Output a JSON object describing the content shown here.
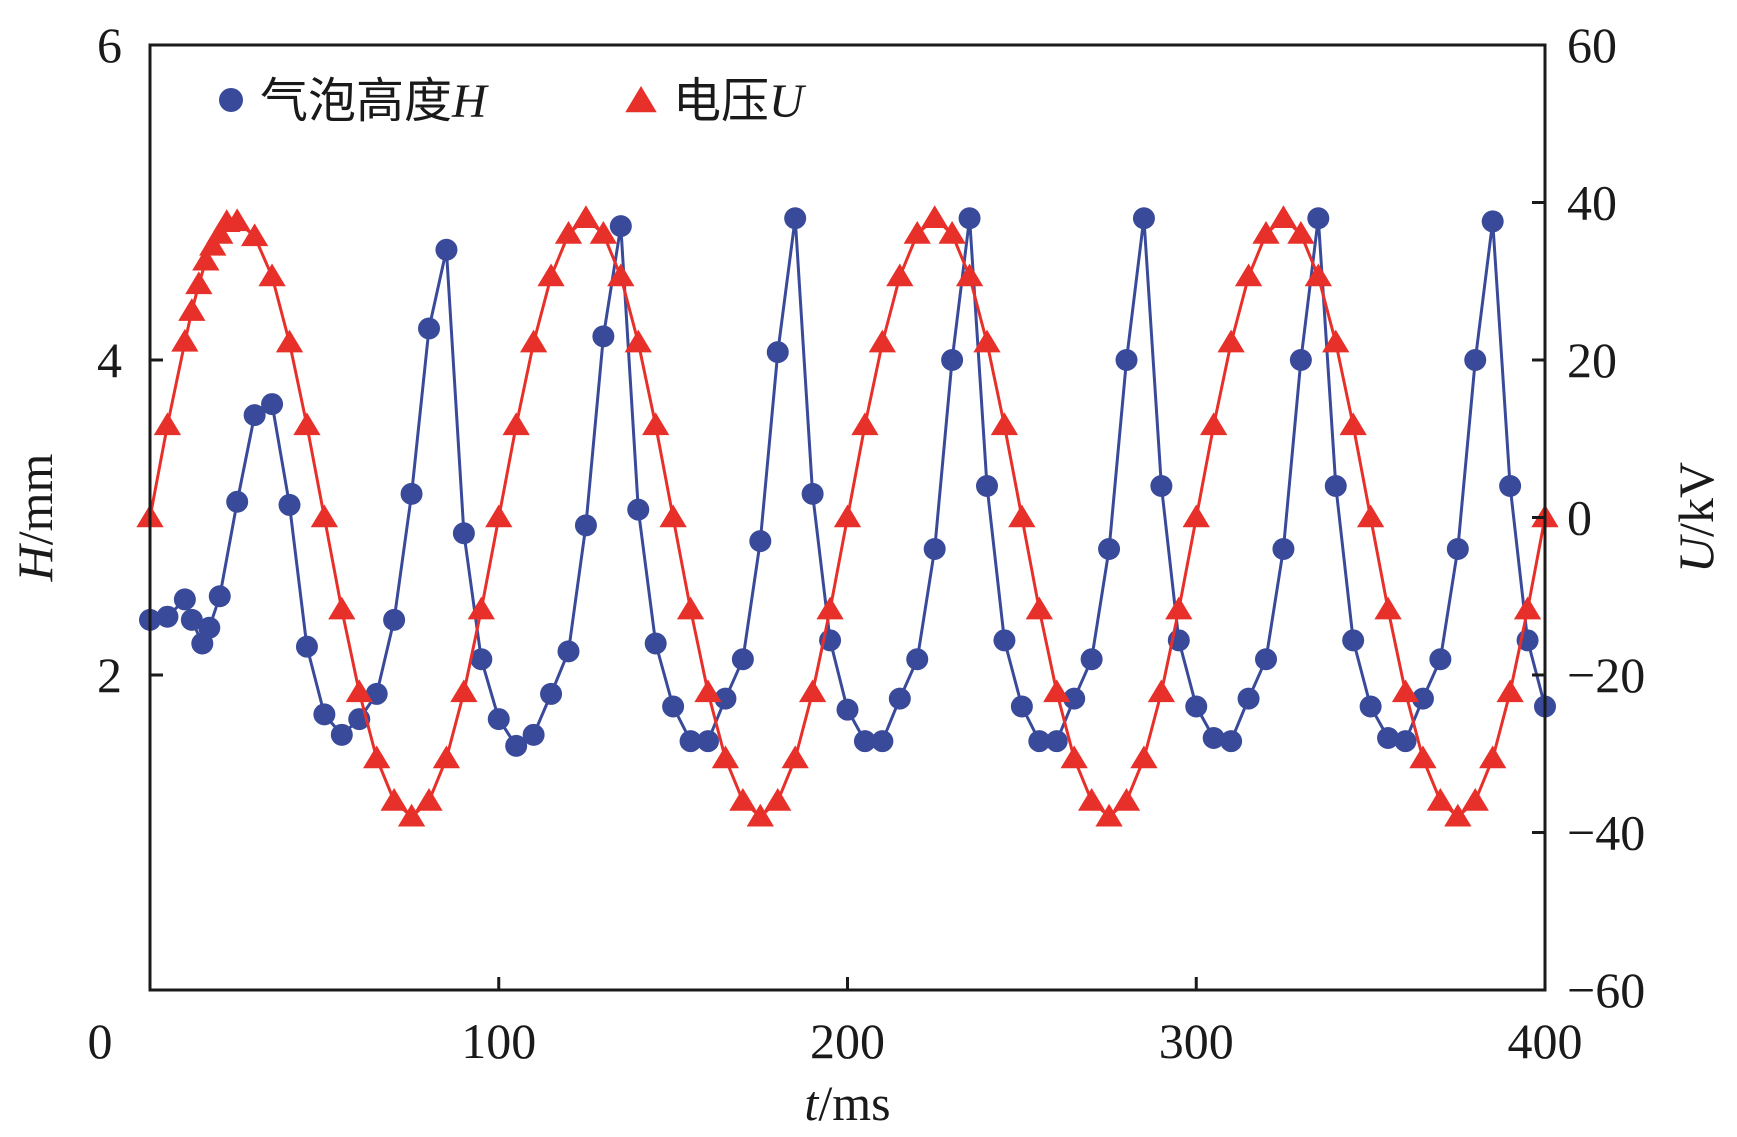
{
  "chart_data": {
    "type": "line",
    "title": "",
    "xlabel": {
      "symbol": "t",
      "unit": "/ms"
    },
    "ylabel_left": {
      "symbol": "H",
      "unit": "/mm"
    },
    "ylabel_right": {
      "symbol": "U",
      "unit": "/kV"
    },
    "xlim": [
      0,
      400
    ],
    "ylim_left": [
      0,
      6
    ],
    "ylim_right": [
      -60,
      60
    ],
    "x_ticks": [
      "0",
      "100",
      "200",
      "300",
      "400"
    ],
    "y_left_ticks": [
      "2",
      "4",
      "6"
    ],
    "y_right_ticks": [
      "60",
      "40",
      "20",
      "0",
      "−20",
      "−40",
      "−60"
    ],
    "legend_position": "top-left",
    "grid": false,
    "series": [
      {
        "name": "气泡高度",
        "symbol": "H",
        "axis": "left",
        "color": "#3a4a9a",
        "marker": "circle",
        "x": [
          0,
          5,
          10,
          12,
          15,
          17,
          20,
          25,
          30,
          35,
          40,
          45,
          50,
          55,
          60,
          65,
          70,
          75,
          80,
          85,
          90,
          95,
          100,
          105,
          110,
          115,
          120,
          125,
          130,
          135,
          140,
          145,
          150,
          155,
          160,
          165,
          170,
          175,
          180,
          185,
          190,
          195,
          200,
          205,
          210,
          215,
          220,
          225,
          230,
          235,
          240,
          245,
          250,
          255,
          260,
          265,
          270,
          275,
          280,
          285,
          290,
          295,
          300,
          305,
          310,
          315,
          320,
          325,
          330,
          335,
          340,
          345,
          350,
          355,
          360,
          365,
          370,
          375,
          380,
          385,
          390,
          395,
          400
        ],
        "values": [
          2.35,
          2.37,
          2.48,
          2.35,
          2.2,
          2.3,
          2.5,
          3.1,
          3.65,
          3.72,
          3.08,
          2.18,
          1.75,
          1.62,
          1.72,
          1.88,
          2.35,
          3.15,
          4.2,
          4.7,
          2.9,
          2.1,
          1.72,
          1.55,
          1.62,
          1.88,
          2.15,
          2.95,
          4.15,
          4.85,
          3.05,
          2.2,
          1.8,
          1.58,
          1.58,
          1.85,
          2.1,
          2.85,
          4.05,
          4.9,
          3.15,
          2.22,
          1.78,
          1.58,
          1.58,
          1.85,
          2.1,
          2.8,
          4.0,
          4.9,
          3.2,
          2.22,
          1.8,
          1.58,
          1.58,
          1.85,
          2.1,
          2.8,
          4.0,
          4.9,
          3.2,
          2.22,
          1.8,
          1.6,
          1.58,
          1.85,
          2.1,
          2.8,
          4.0,
          4.9,
          3.2,
          2.22,
          1.8,
          1.6,
          1.58,
          1.85,
          2.1,
          2.8,
          4.0,
          4.88,
          3.2,
          2.22,
          1.8
        ]
      },
      {
        "name": "电压",
        "symbol": "U",
        "axis": "right",
        "color": "#e8302a",
        "marker": "triangle",
        "x": [
          0,
          5,
          10,
          12,
          14,
          16,
          18,
          20,
          22,
          25,
          30,
          35,
          40,
          45,
          50,
          55,
          60,
          65,
          70,
          75,
          80,
          85,
          90,
          95,
          100,
          105,
          110,
          115,
          120,
          125,
          130,
          135,
          140,
          145,
          150,
          155,
          160,
          165,
          170,
          175,
          180,
          185,
          190,
          195,
          200,
          205,
          210,
          215,
          220,
          225,
          230,
          235,
          240,
          245,
          250,
          255,
          260,
          265,
          270,
          275,
          280,
          285,
          290,
          295,
          300,
          305,
          310,
          315,
          320,
          325,
          330,
          335,
          340,
          345,
          350,
          355,
          360,
          365,
          370,
          375,
          380,
          385,
          390,
          395,
          400
        ],
        "values": [
          0,
          11.7,
          22.3,
          26.2,
          29.6,
          32.6,
          34.5,
          36.0,
          37.5,
          37.6,
          35.7,
          30.6,
          22.2,
          11.7,
          0,
          -11.7,
          -22.2,
          -30.6,
          -36.0,
          -38.0,
          -36.0,
          -30.6,
          -22.2,
          -11.7,
          0,
          11.7,
          22.2,
          30.6,
          36.0,
          38.0,
          36.0,
          30.6,
          22.2,
          11.7,
          0,
          -11.7,
          -22.2,
          -30.6,
          -36.0,
          -38.0,
          -36.0,
          -30.6,
          -22.2,
          -11.7,
          0,
          11.7,
          22.2,
          30.6,
          36.0,
          38.0,
          36.0,
          30.6,
          22.2,
          11.7,
          0,
          -11.7,
          -22.2,
          -30.6,
          -36.0,
          -38.0,
          -36.0,
          -30.6,
          -22.2,
          -11.7,
          0,
          11.7,
          22.2,
          30.6,
          36.0,
          38.0,
          36.0,
          30.6,
          22.2,
          11.7,
          0,
          -11.7,
          -22.2,
          -30.6,
          -36.0,
          -38.0,
          -36.0,
          -30.6,
          -22.2,
          -11.7,
          0
        ]
      }
    ]
  }
}
